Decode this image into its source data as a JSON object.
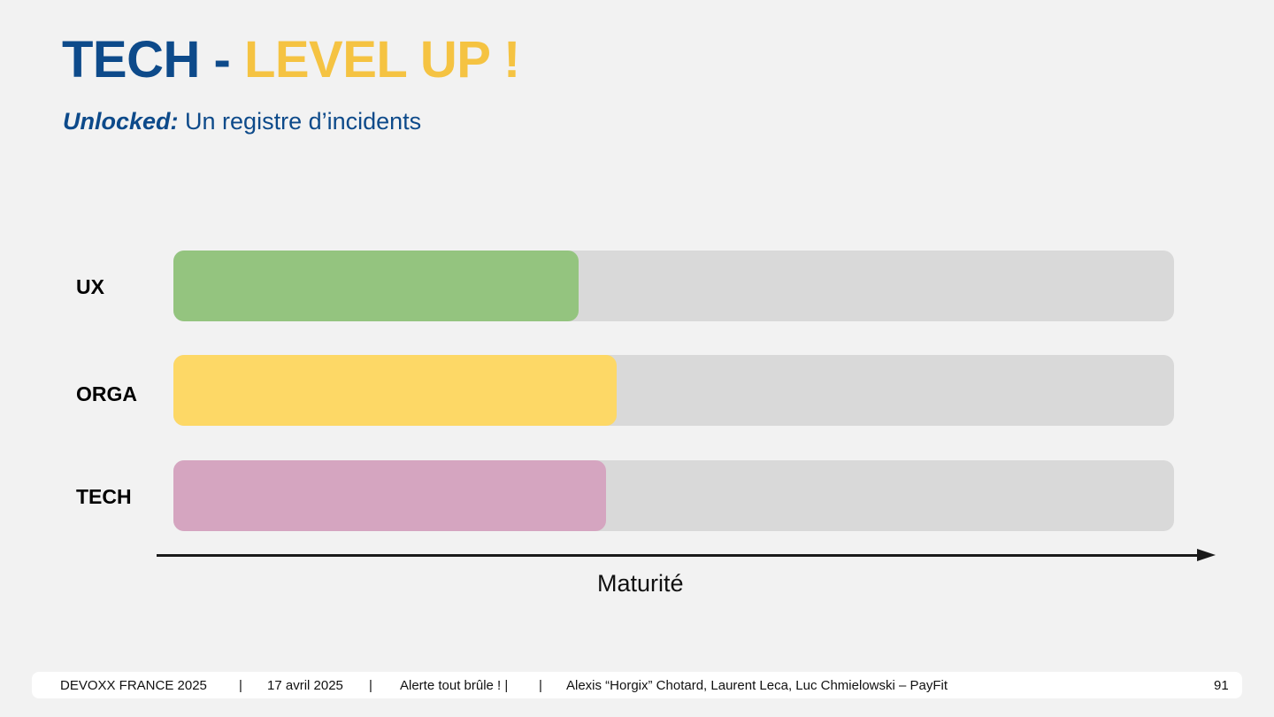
{
  "title": {
    "part1": "TECH",
    "separator": " - ",
    "part2": "LEVEL UP !"
  },
  "subtitle": {
    "emphasis": "Unlocked:",
    "text": " Un registre d’incidents"
  },
  "bars": [
    {
      "label": "UX",
      "level": 0.405,
      "color": "#94c47f"
    },
    {
      "label": "ORGA",
      "level": 0.443,
      "color": "#fdd866"
    },
    {
      "label": "TECH",
      "level": 0.432,
      "color": "#d5a5c0"
    }
  ],
  "axis_label": "Maturité",
  "footer": {
    "event": "DEVOXX FRANCE 2025",
    "sep": "|",
    "date": "17 avril 2025",
    "talk": "Alerte tout brûle !  |",
    "authors": "Alexis “Horgix” Chotard, Laurent Leca, Luc Chmielowski – PayFit",
    "page": "91"
  },
  "colors": {
    "navy": "#0d4a8a",
    "yellow": "#f5c342",
    "track": "#d9d9d9",
    "background": "#f2f2f2"
  }
}
